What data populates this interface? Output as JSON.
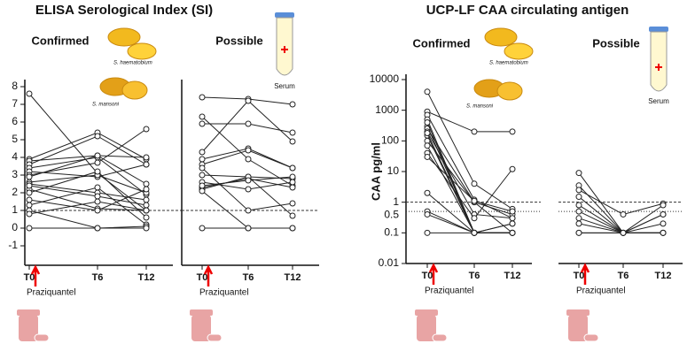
{
  "icons": {
    "species": [
      "S. haematobium",
      "S. mansoni"
    ],
    "serum": "Serum"
  },
  "chart_data": [
    {
      "type": "line",
      "title": "ELISA Serological Index (SI)",
      "panel": "Confirmed",
      "annotation": "Praziquantel",
      "categories": [
        "T0",
        "T6",
        "T12"
      ],
      "color": "#222",
      "ylim": [
        -2.1,
        8.1
      ],
      "yticks": [
        8,
        7,
        6,
        5,
        4,
        3,
        2,
        1,
        0,
        -1
      ],
      "reference_lines": [
        {
          "value": 1,
          "style": "dashed"
        }
      ],
      "series": [
        {
          "values": [
            7.6,
            3.1,
            1.0
          ]
        },
        {
          "values": [
            3.9,
            5.4,
            3.9
          ]
        },
        {
          "values": [
            3.8,
            4.1,
            4.0
          ]
        },
        {
          "values": [
            3.6,
            5.2,
            3.6
          ]
        },
        {
          "values": [
            3.4,
            4.0,
            1.9
          ]
        },
        {
          "values": [
            3.2,
            2.9,
            3.6
          ]
        },
        {
          "values": [
            3.0,
            3.7,
            5.6
          ]
        },
        {
          "values": [
            2.9,
            4.1,
            2.5
          ]
        },
        {
          "values": [
            2.6,
            3.0,
            2.0
          ]
        },
        {
          "values": [
            2.5,
            2.0,
            1.6
          ]
        },
        {
          "values": [
            2.2,
            1.1,
            1.0
          ]
        },
        {
          "values": [
            2.0,
            3.2,
            0.6
          ]
        },
        {
          "values": [
            1.6,
            1.0,
            2.2
          ]
        },
        {
          "values": [
            1.3,
            2.3,
            0.2
          ]
        },
        {
          "values": [
            1.0,
            0.0,
            0.1
          ]
        },
        {
          "values": [
            0.8,
            1.5,
            1.0
          ]
        },
        {
          "values": [
            0.0,
            0.0,
            0.0
          ]
        },
        {
          "values": [
            2.4,
            1.8,
            1.3
          ]
        }
      ]
    },
    {
      "type": "line",
      "panel": "Possible",
      "annotation": "Praziquantel",
      "categories": [
        "T0",
        "T6",
        "T12"
      ],
      "color": "#222",
      "ylim": [
        -2.1,
        8.1
      ],
      "reference_lines": [
        {
          "value": 1,
          "style": "dashed"
        }
      ],
      "series": [
        {
          "values": [
            7.4,
            7.3,
            7.0
          ]
        },
        {
          "values": [
            6.3,
            3.9,
            2.4
          ]
        },
        {
          "values": [
            5.9,
            5.9,
            5.4
          ]
        },
        {
          "values": [
            4.3,
            7.2,
            4.9
          ]
        },
        {
          "values": [
            3.9,
            4.5,
            3.4
          ]
        },
        {
          "values": [
            3.6,
            4.4,
            3.4
          ]
        },
        {
          "values": [
            3.0,
            2.9,
            2.8
          ]
        },
        {
          "values": [
            2.6,
            2.2,
            2.6
          ]
        },
        {
          "values": [
            2.3,
            2.8,
            2.3
          ]
        },
        {
          "values": [
            2.2,
            2.9,
            0.7
          ]
        },
        {
          "values": [
            2.1,
            0.0,
            0.0
          ]
        },
        {
          "values": [
            0.0,
            0.0,
            0.0
          ]
        },
        {
          "values": [
            3.4,
            1.0,
            1.4
          ]
        },
        {
          "values": [
            2.4,
            2.7,
            2.9
          ]
        }
      ]
    },
    {
      "type": "line",
      "title": "UCP-LF CAA circulating antigen",
      "panel": "Confirmed",
      "annotation": "Praziquantel",
      "y_label": "CAA pg/ml",
      "log_scale": true,
      "categories": [
        "T0",
        "T6",
        "T12"
      ],
      "color": "#222",
      "ylim": [
        0.01,
        10000
      ],
      "yticks": [
        10000,
        1000,
        100,
        10,
        1,
        0.1,
        0.01
      ],
      "reference_lines": [
        {
          "value": 1,
          "style": "dashed"
        },
        {
          "value": 0.5,
          "style": "dotted",
          "labeled": true
        }
      ],
      "series": [
        {
          "values": [
            4000,
            4,
            0.6
          ]
        },
        {
          "values": [
            900,
            200,
            200
          ]
        },
        {
          "values": [
            700,
            1.2,
            0.3
          ]
        },
        {
          "values": [
            500,
            0.1,
            0.1
          ]
        },
        {
          "values": [
            300,
            0.1,
            0.2
          ]
        },
        {
          "values": [
            250,
            1,
            0.4
          ]
        },
        {
          "values": [
            200,
            0.4,
            0.3
          ]
        },
        {
          "values": [
            150,
            0.1,
            0.1
          ]
        },
        {
          "values": [
            100,
            1,
            0.1
          ]
        },
        {
          "values": [
            70,
            0.1,
            0.1
          ]
        },
        {
          "values": [
            40,
            0.3,
            12
          ]
        },
        {
          "values": [
            30,
            1.1,
            0.5
          ]
        },
        {
          "values": [
            2,
            0.1,
            0.1
          ]
        },
        {
          "values": [
            0.5,
            0.1,
            0.1
          ]
        },
        {
          "values": [
            0.4,
            0.1,
            0.2
          ]
        },
        {
          "values": [
            0.1,
            0.1,
            0.1
          ]
        },
        {
          "values": [
            180,
            0.1,
            0.1
          ]
        },
        {
          "values": [
            400,
            0.1,
            0.1
          ]
        }
      ]
    },
    {
      "type": "line",
      "panel": "Possible",
      "annotation": "Praziquantel",
      "log_scale": true,
      "categories": [
        "T0",
        "T6",
        "T12"
      ],
      "color": "#222",
      "ylim": [
        0.01,
        10000
      ],
      "reference_lines": [
        {
          "value": 1,
          "style": "dashed"
        },
        {
          "value": 0.5,
          "style": "dotted"
        }
      ],
      "series": [
        {
          "values": [
            9,
            0.1,
            0.1
          ]
        },
        {
          "values": [
            3.5,
            0.1,
            0.4
          ]
        },
        {
          "values": [
            2.5,
            0.4,
            0.9
          ]
        },
        {
          "values": [
            1.5,
            0.1,
            0.8
          ]
        },
        {
          "values": [
            0.8,
            0.1,
            0.1
          ]
        },
        {
          "values": [
            0.5,
            0.1,
            0.2
          ]
        },
        {
          "values": [
            0.3,
            0.1,
            0.4
          ]
        },
        {
          "values": [
            0.2,
            0.1,
            0.1
          ]
        },
        {
          "values": [
            0.1,
            0.1,
            0.1
          ]
        },
        {
          "values": [
            0.1,
            0.1,
            0.1
          ]
        }
      ]
    }
  ]
}
